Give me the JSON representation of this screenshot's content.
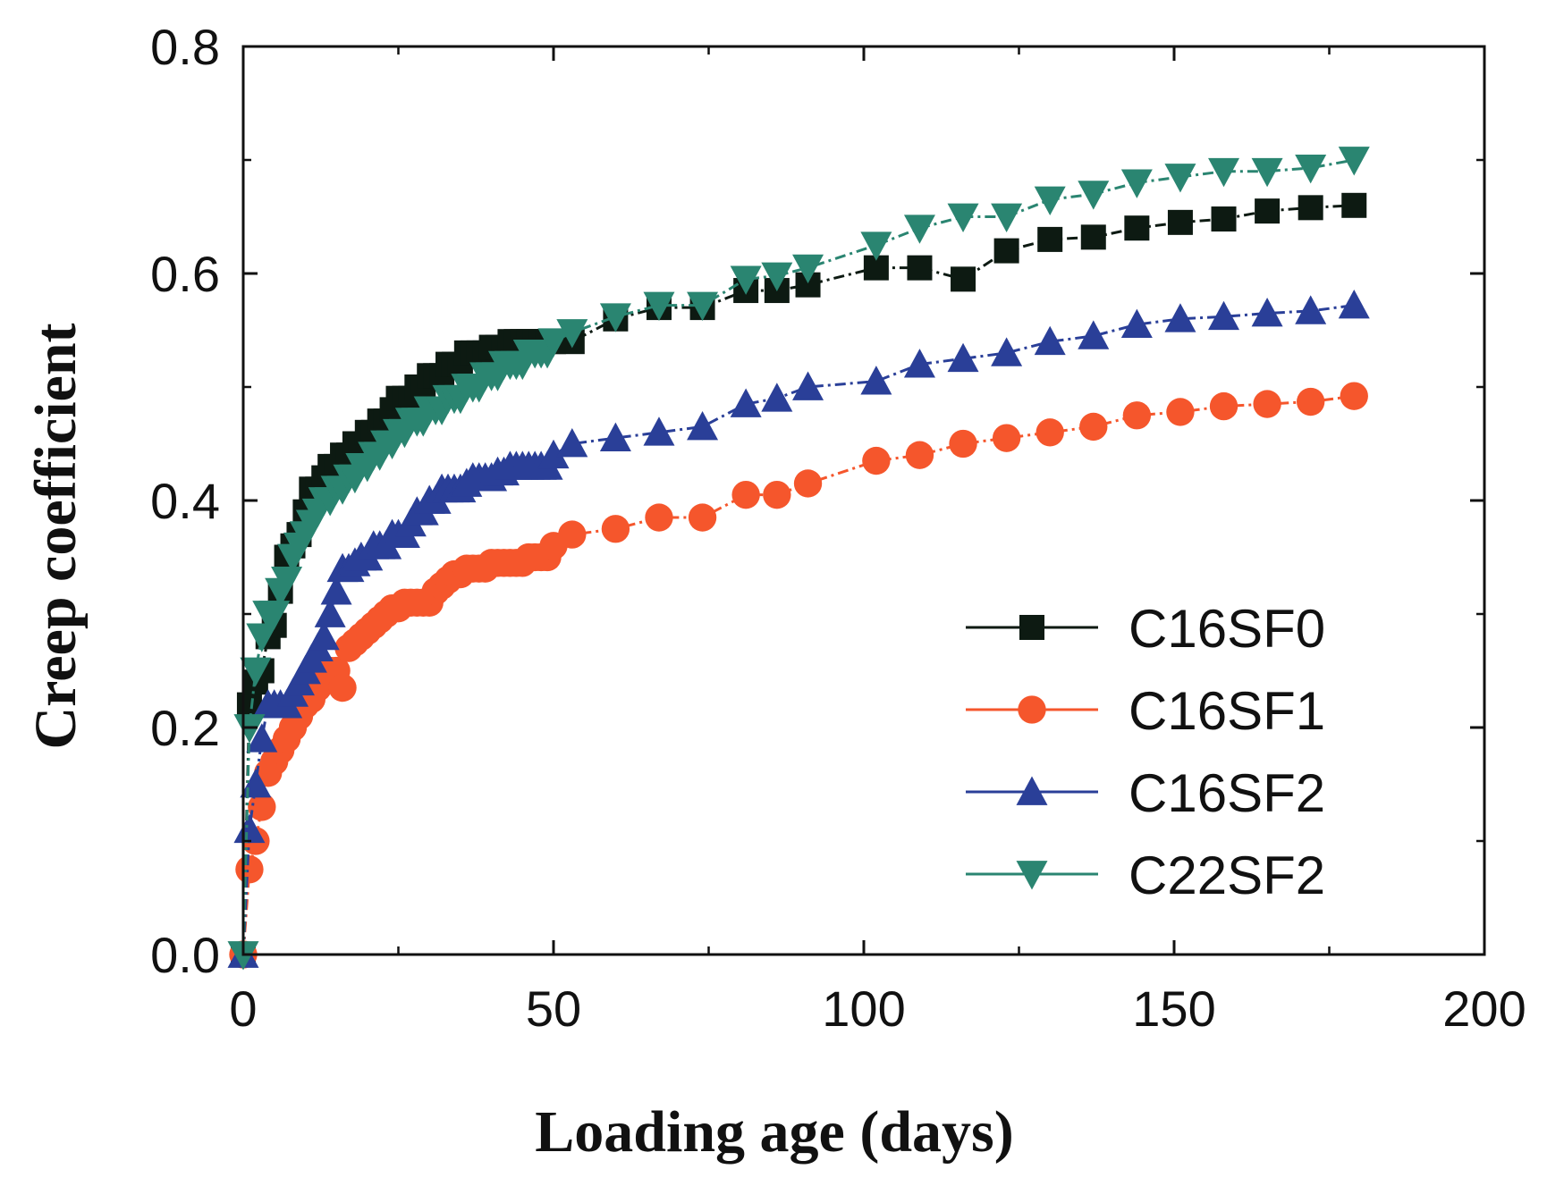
{
  "chart_data": {
    "type": "line",
    "xlabel": "Loading age (days)",
    "ylabel": "Creep coefficient",
    "xlim": [
      0,
      200
    ],
    "ylim": [
      0,
      0.8
    ],
    "xticks": [
      0,
      50,
      100,
      150,
      200
    ],
    "xtick_labels": [
      "0",
      "50",
      "100",
      "150",
      "200"
    ],
    "yticks": [
      0.0,
      0.2,
      0.4,
      0.6,
      0.8
    ],
    "ytick_labels": [
      "0.0",
      "0.2",
      "0.4",
      "0.6",
      "0.8"
    ],
    "grid": false,
    "legend_position": "lower-right",
    "series": [
      {
        "name": "C16SF0",
        "color": "#0d1a12",
        "marker": "square",
        "line": "dash-dot",
        "x": [
          0,
          1,
          2,
          3,
          4,
          5,
          6,
          7,
          8,
          9,
          10,
          11,
          12,
          13,
          14,
          15,
          16,
          17,
          18,
          19,
          20,
          21,
          22,
          23,
          24,
          25,
          26,
          27,
          28,
          29,
          30,
          31,
          32,
          33,
          34,
          35,
          36,
          37,
          38,
          39,
          40,
          41,
          42,
          43,
          44,
          45,
          46,
          47,
          48,
          49,
          50,
          53,
          60,
          67,
          74,
          81,
          86,
          91,
          102,
          109,
          116,
          123,
          130,
          137,
          144,
          151,
          158,
          165,
          172,
          179
        ],
        "y": [
          0.0,
          0.22,
          0.24,
          0.25,
          0.28,
          0.29,
          0.32,
          0.35,
          0.36,
          0.37,
          0.39,
          0.41,
          0.41,
          0.42,
          0.43,
          0.43,
          0.44,
          0.44,
          0.45,
          0.45,
          0.46,
          0.46,
          0.47,
          0.47,
          0.48,
          0.49,
          0.49,
          0.49,
          0.5,
          0.5,
          0.51,
          0.51,
          0.51,
          0.52,
          0.52,
          0.52,
          0.53,
          0.53,
          0.53,
          0.53,
          0.535,
          0.535,
          0.535,
          0.54,
          0.54,
          0.54,
          0.54,
          0.54,
          0.54,
          0.54,
          0.54,
          0.54,
          0.56,
          0.57,
          0.57,
          0.585,
          0.585,
          0.59,
          0.605,
          0.605,
          0.595,
          0.62,
          0.63,
          0.632,
          0.64,
          0.645,
          0.648,
          0.655,
          0.658,
          0.66
        ]
      },
      {
        "name": "C16SF1",
        "color": "#f5562c",
        "marker": "circle",
        "line": "dash-dot",
        "x": [
          0,
          1,
          2,
          3,
          4,
          5,
          6,
          7,
          8,
          9,
          10,
          11,
          12,
          13,
          14,
          15,
          16,
          17,
          18,
          19,
          20,
          21,
          22,
          23,
          24,
          25,
          26,
          27,
          28,
          29,
          30,
          31,
          32,
          33,
          34,
          35,
          36,
          37,
          38,
          39,
          40,
          41,
          42,
          43,
          44,
          45,
          46,
          47,
          48,
          49,
          50,
          53,
          60,
          67,
          74,
          81,
          86,
          91,
          102,
          109,
          116,
          123,
          130,
          137,
          144,
          151,
          158,
          165,
          172,
          179
        ],
        "y": [
          0.0,
          0.075,
          0.1,
          0.13,
          0.16,
          0.17,
          0.18,
          0.19,
          0.2,
          0.21,
          0.22,
          0.225,
          0.235,
          0.245,
          0.25,
          0.25,
          0.235,
          0.27,
          0.275,
          0.28,
          0.285,
          0.29,
          0.295,
          0.3,
          0.305,
          0.305,
          0.31,
          0.31,
          0.31,
          0.31,
          0.31,
          0.32,
          0.325,
          0.33,
          0.335,
          0.335,
          0.34,
          0.34,
          0.34,
          0.34,
          0.345,
          0.345,
          0.345,
          0.345,
          0.345,
          0.345,
          0.35,
          0.35,
          0.35,
          0.35,
          0.36,
          0.37,
          0.375,
          0.385,
          0.385,
          0.405,
          0.405,
          0.415,
          0.435,
          0.44,
          0.45,
          0.455,
          0.46,
          0.465,
          0.475,
          0.478,
          0.483,
          0.485,
          0.487,
          0.492
        ]
      },
      {
        "name": "C16SF2",
        "color": "#2a3f98",
        "marker": "triangle-up",
        "line": "dash-dot",
        "x": [
          0,
          1,
          2,
          3,
          4,
          5,
          6,
          7,
          8,
          9,
          10,
          11,
          12,
          13,
          14,
          15,
          16,
          17,
          18,
          19,
          20,
          21,
          22,
          23,
          24,
          25,
          26,
          27,
          28,
          29,
          30,
          31,
          32,
          33,
          34,
          35,
          36,
          37,
          38,
          39,
          40,
          41,
          42,
          43,
          44,
          45,
          46,
          47,
          48,
          49,
          50,
          53,
          60,
          67,
          74,
          81,
          86,
          91,
          102,
          109,
          116,
          123,
          130,
          137,
          144,
          151,
          158,
          165,
          172,
          179
        ],
        "y": [
          0.0,
          0.11,
          0.15,
          0.19,
          0.22,
          0.22,
          0.22,
          0.22,
          0.23,
          0.24,
          0.25,
          0.26,
          0.27,
          0.28,
          0.3,
          0.32,
          0.34,
          0.34,
          0.345,
          0.35,
          0.35,
          0.36,
          0.36,
          0.36,
          0.37,
          0.37,
          0.37,
          0.38,
          0.39,
          0.39,
          0.4,
          0.4,
          0.41,
          0.41,
          0.41,
          0.41,
          0.415,
          0.42,
          0.42,
          0.42,
          0.42,
          0.425,
          0.425,
          0.43,
          0.43,
          0.43,
          0.43,
          0.43,
          0.43,
          0.43,
          0.44,
          0.45,
          0.455,
          0.46,
          0.465,
          0.485,
          0.49,
          0.5,
          0.505,
          0.52,
          0.525,
          0.53,
          0.54,
          0.545,
          0.555,
          0.56,
          0.562,
          0.565,
          0.567,
          0.572
        ]
      },
      {
        "name": "C22SF2",
        "color": "#2a8571",
        "marker": "triangle-down",
        "line": "dash-dot",
        "x": [
          0,
          1,
          2,
          3,
          4,
          5,
          6,
          7,
          8,
          9,
          10,
          11,
          12,
          13,
          14,
          15,
          16,
          17,
          18,
          19,
          20,
          21,
          22,
          23,
          24,
          25,
          26,
          27,
          28,
          29,
          30,
          31,
          32,
          33,
          34,
          35,
          36,
          37,
          38,
          39,
          40,
          41,
          42,
          43,
          44,
          45,
          46,
          47,
          48,
          49,
          50,
          53,
          60,
          67,
          74,
          81,
          86,
          91,
          102,
          109,
          116,
          123,
          130,
          137,
          144,
          151,
          158,
          165,
          172,
          179
        ],
        "y": [
          0.0,
          0.2,
          0.25,
          0.28,
          0.3,
          0.3,
          0.32,
          0.33,
          0.35,
          0.36,
          0.37,
          0.38,
          0.39,
          0.4,
          0.4,
          0.41,
          0.41,
          0.42,
          0.42,
          0.43,
          0.43,
          0.44,
          0.44,
          0.45,
          0.45,
          0.46,
          0.46,
          0.47,
          0.47,
          0.47,
          0.48,
          0.48,
          0.48,
          0.49,
          0.49,
          0.49,
          0.5,
          0.5,
          0.5,
          0.51,
          0.51,
          0.51,
          0.52,
          0.52,
          0.52,
          0.52,
          0.53,
          0.53,
          0.53,
          0.53,
          0.54,
          0.548,
          0.562,
          0.572,
          0.572,
          0.595,
          0.598,
          0.605,
          0.625,
          0.64,
          0.65,
          0.65,
          0.665,
          0.67,
          0.68,
          0.685,
          0.69,
          0.69,
          0.693,
          0.7
        ]
      }
    ]
  }
}
